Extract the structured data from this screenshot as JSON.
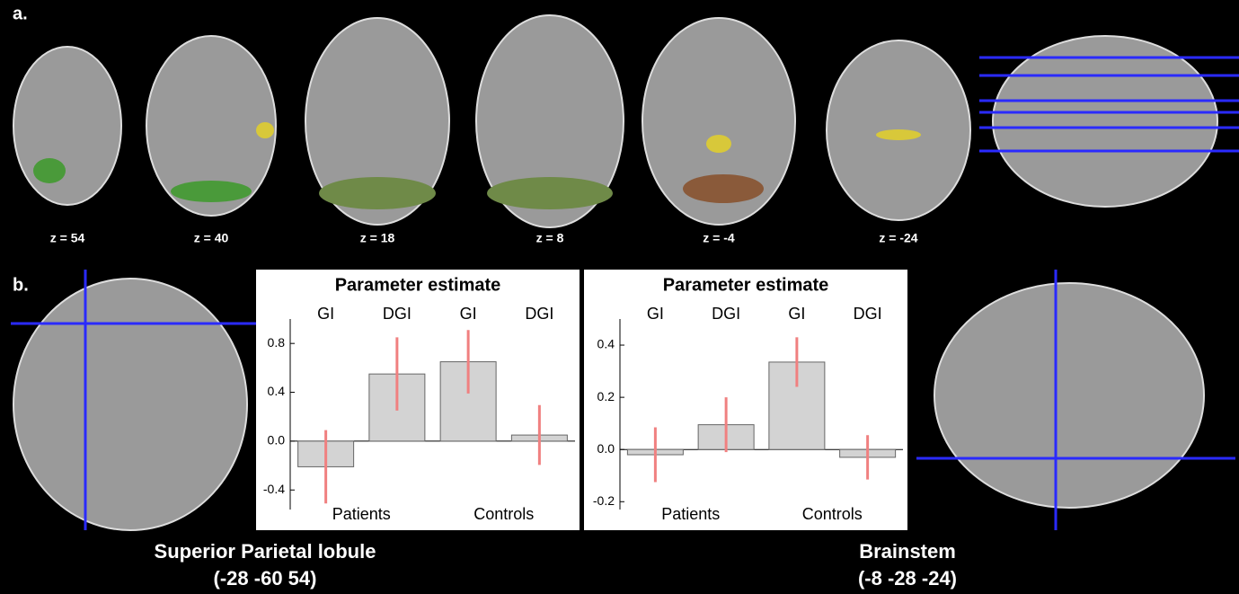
{
  "panels": {
    "a": "a.",
    "b": "b."
  },
  "slices": [
    "z = 54",
    "z = 40",
    "z = 18",
    "z = 8",
    "z = -4",
    "z = -24"
  ],
  "regions": [
    {
      "name": "Superior Parietal lobule",
      "coords": "(-28 -60 54)"
    },
    {
      "name": "Brainstem",
      "coords": "(-8 -28 -24)"
    }
  ],
  "chart_data": [
    {
      "type": "bar",
      "title": "Parameter estimate",
      "categories": [
        "GI",
        "DGI",
        "GI",
        "DGI"
      ],
      "groups": [
        "Patients",
        "Controls"
      ],
      "values": [
        -0.21,
        0.55,
        0.65,
        0.05
      ],
      "errors": [
        0.3,
        0.3,
        0.26,
        0.245
      ],
      "color": "#d3d3d3",
      "error_color": "#f08080",
      "ylim": [
        -0.56,
        1.0
      ],
      "yticks": [
        -0.4,
        {
          "value": 0,
          "label": "0.0"
        },
        0.4,
        0.8
      ]
    },
    {
      "type": "bar",
      "title": "Parameter estimate",
      "categories": [
        "GI",
        "DGI",
        "GI",
        "DGI"
      ],
      "groups": [
        "Patients",
        "Controls"
      ],
      "values": [
        -0.02,
        0.095,
        0.335,
        -0.03
      ],
      "errors": [
        0.105,
        0.105,
        0.095,
        0.085
      ],
      "color": "#d3d3d3",
      "error_color": "#f08080",
      "ylim": [
        -0.23,
        0.5
      ],
      "yticks": [
        -0.2,
        {
          "value": 0,
          "label": "0.0"
        },
        0.2,
        0.4
      ]
    }
  ]
}
